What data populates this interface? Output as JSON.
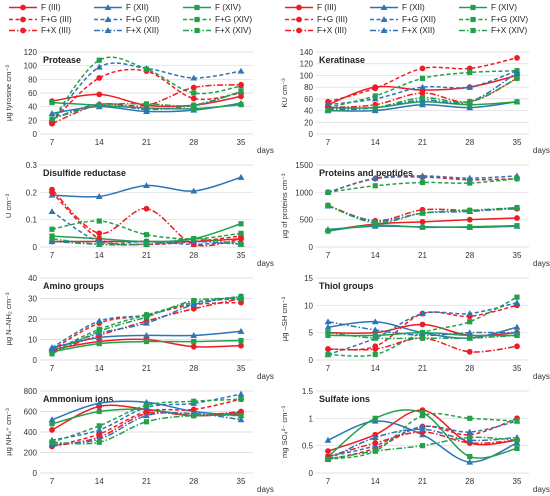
{
  "figure": {
    "x_ticks": [
      7,
      14,
      21,
      28,
      35
    ],
    "x_unit": "days"
  },
  "legend": [
    {
      "label": "F (III)",
      "key": "F_III"
    },
    {
      "label": "F (XII)",
      "key": "F_XII"
    },
    {
      "label": "F (XIV)",
      "key": "F_XIV"
    },
    {
      "label": "F+G (III)",
      "key": "FG_III"
    },
    {
      "label": "F+G (XII)",
      "key": "FG_XII"
    },
    {
      "label": "F+G (XIV)",
      "key": "FG_XIV"
    },
    {
      "label": "F+X (III)",
      "key": "FX_III"
    },
    {
      "label": "F+X (XII)",
      "key": "FX_XII"
    },
    {
      "label": "F+X (XIV)",
      "key": "FX_XIV"
    }
  ],
  "series_style": {
    "F_III": {
      "color": "#ee1c25",
      "marker": "circle",
      "dash": "solid"
    },
    "F_XII": {
      "color": "#2e75b6",
      "marker": "triangle",
      "dash": "solid"
    },
    "F_XIV": {
      "color": "#21a24a",
      "marker": "square",
      "dash": "solid"
    },
    "FG_III": {
      "color": "#ee1c25",
      "marker": "circle",
      "dash": "dashed"
    },
    "FG_XII": {
      "color": "#2e75b6",
      "marker": "triangle",
      "dash": "dashed"
    },
    "FG_XIV": {
      "color": "#21a24a",
      "marker": "square",
      "dash": "dashed"
    },
    "FX_III": {
      "color": "#ee1c25",
      "marker": "circle",
      "dash": "dashdot"
    },
    "FX_XII": {
      "color": "#2e75b6",
      "marker": "triangle",
      "dash": "dashdot"
    },
    "FX_XIV": {
      "color": "#21a24a",
      "marker": "square",
      "dash": "dashdot"
    }
  },
  "chart_data": [
    {
      "type": "line",
      "title": "Protease",
      "ylabel": "µg tyrosine cm⁻³",
      "x": [
        7,
        14,
        21,
        28,
        35
      ],
      "ylim": [
        0,
        120
      ],
      "yticks": [
        0,
        20,
        40,
        60,
        80,
        100,
        120
      ],
      "series": {
        "F_III": [
          48,
          58,
          42,
          42,
          55
        ],
        "F_XII": [
          30,
          40,
          33,
          35,
          45
        ],
        "F_XIV": [
          46,
          42,
          38,
          37,
          43
        ],
        "FG_III": [
          18,
          82,
          92,
          52,
          60
        ],
        "FG_XII": [
          18,
          98,
          96,
          82,
          92
        ],
        "FG_XIV": [
          20,
          108,
          95,
          60,
          70
        ],
        "FX_III": [
          15,
          43,
          42,
          68,
          72
        ],
        "FX_XII": [
          22,
          44,
          36,
          42,
          62
        ],
        "FX_XIV": [
          22,
          42,
          44,
          42,
          62
        ]
      }
    },
    {
      "type": "line",
      "title": "Keratinase",
      "ylabel": "KU cm⁻³",
      "x": [
        7,
        14,
        21,
        28,
        35
      ],
      "ylim": [
        0,
        140
      ],
      "yticks": [
        0,
        20,
        40,
        60,
        80,
        100,
        120,
        140
      ],
      "series": {
        "F_III": [
          50,
          80,
          75,
          80,
          100
        ],
        "F_XII": [
          40,
          40,
          50,
          45,
          55
        ],
        "F_XIV": [
          45,
          45,
          55,
          50,
          55
        ],
        "FG_III": [
          55,
          78,
          112,
          112,
          130
        ],
        "FG_XII": [
          50,
          60,
          80,
          80,
          108
        ],
        "FG_XIV": [
          45,
          65,
          95,
          105,
          108
        ],
        "FX_III": [
          45,
          50,
          70,
          55,
          95
        ],
        "FX_XII": [
          42,
          45,
          58,
          55,
          105
        ],
        "FX_XIV": [
          40,
          45,
          62,
          55,
          95
        ]
      }
    },
    {
      "type": "line",
      "title": "Disulfide reductase",
      "ylabel": "U cm⁻³",
      "x": [
        7,
        14,
        21,
        28,
        35
      ],
      "ylim": [
        0,
        0.3
      ],
      "yticks": [
        0,
        0.1,
        0.2,
        0.3
      ],
      "series": {
        "F_III": [
          0.02,
          0.02,
          0.02,
          0.02,
          0.03
        ],
        "F_XII": [
          0.19,
          0.185,
          0.225,
          0.205,
          0.255
        ],
        "F_XIV": [
          0.04,
          0.03,
          0.02,
          0.03,
          0.085
        ],
        "FG_III": [
          0.2,
          0.03,
          0.01,
          0.02,
          0.04
        ],
        "FG_XII": [
          0.13,
          0.02,
          0.02,
          0.01,
          0.02
        ],
        "FG_XIV": [
          0.065,
          0.095,
          0.045,
          0.03,
          0.05
        ],
        "FX_III": [
          0.21,
          0.05,
          0.14,
          0.01,
          0.03
        ],
        "FX_XII": [
          0.02,
          0.01,
          0.01,
          0.02,
          0.01
        ],
        "FX_XIV": [
          0.03,
          0.01,
          0.01,
          0.03,
          0.01
        ]
      }
    },
    {
      "type": "line",
      "title": "Proteins and peptides",
      "ylabel": "µg of proteins cm⁻³",
      "x": [
        7,
        14,
        21,
        28,
        35
      ],
      "ylim": [
        0,
        1500
      ],
      "yticks": [
        0,
        500,
        1000,
        1500
      ],
      "series": {
        "F_III": [
          300,
          420,
          460,
          500,
          530
        ],
        "F_XII": [
          320,
          380,
          370,
          360,
          380
        ],
        "F_XIV": [
          290,
          400,
          360,
          370,
          390
        ],
        "FG_III": [
          1000,
          1250,
          1280,
          1230,
          1250
        ],
        "FG_XII": [
          1000,
          1260,
          1300,
          1260,
          1300
        ],
        "FG_XIV": [
          1000,
          1120,
          1180,
          1170,
          1250
        ],
        "FX_III": [
          760,
          480,
          680,
          670,
          700
        ],
        "FX_XII": [
          750,
          470,
          620,
          650,
          720
        ],
        "FX_XIV": [
          760,
          440,
          620,
          670,
          720
        ]
      }
    },
    {
      "type": "line",
      "title": "Amino groups",
      "ylabel": "µg N–NH₂ cm⁻³",
      "x": [
        7,
        14,
        21,
        28,
        35
      ],
      "ylim": [
        0,
        40
      ],
      "yticks": [
        0,
        10,
        20,
        30,
        40
      ],
      "series": {
        "F_III": [
          5,
          9,
          10,
          6.5,
          7
        ],
        "F_XII": [
          6,
          11,
          12,
          12,
          14
        ],
        "F_XIV": [
          4,
          8,
          9,
          9,
          9.5
        ],
        "FG_III": [
          5,
          18,
          22,
          27,
          28
        ],
        "FG_XII": [
          6,
          19,
          22,
          28,
          30
        ],
        "FG_XIV": [
          4,
          15,
          22,
          28,
          31
        ],
        "FX_III": [
          4,
          12,
          19,
          25,
          30
        ],
        "FX_XII": [
          5,
          13,
          18,
          27,
          31
        ],
        "FX_XIV": [
          3,
          14,
          21,
          29,
          30
        ]
      }
    },
    {
      "type": "line",
      "title": "Thiol groups",
      "ylabel": "µg –SH cm⁻³",
      "x": [
        7,
        14,
        21,
        28,
        35
      ],
      "ylim": [
        0,
        15
      ],
      "yticks": [
        0,
        5,
        10,
        15
      ],
      "series": {
        "F_III": [
          5,
          5,
          6.5,
          4.5,
          5
        ],
        "F_XII": [
          6,
          7,
          5,
          4,
          6
        ],
        "F_XIV": [
          4.5,
          4.5,
          5,
          4.5,
          4.5
        ],
        "FG_III": [
          2,
          2.5,
          8.5,
          8,
          10
        ],
        "FG_XII": [
          1,
          4,
          8.5,
          8.5,
          10.5
        ],
        "FG_XIV": [
          1,
          1,
          5,
          7,
          11.5
        ],
        "FX_III": [
          2,
          2,
          4,
          1.5,
          2.5
        ],
        "FX_XII": [
          7,
          5.5,
          4.5,
          5,
          5
        ],
        "FX_XIV": [
          5,
          4,
          4,
          4,
          4.5
        ]
      }
    },
    {
      "type": "line",
      "title": "Ammonium ions",
      "ylabel": "µg NH₄⁺ cm⁻³",
      "x": [
        7,
        14,
        21,
        28,
        35
      ],
      "ylim": [
        0,
        800
      ],
      "yticks": [
        0,
        200,
        400,
        600,
        800
      ],
      "series": {
        "F_III": [
          420,
          650,
          620,
          560,
          580
        ],
        "F_XII": [
          520,
          680,
          690,
          600,
          560
        ],
        "F_XIV": [
          480,
          600,
          620,
          560,
          590
        ],
        "FG_III": [
          260,
          380,
          600,
          620,
          720
        ],
        "FG_XII": [
          320,
          420,
          640,
          680,
          770
        ],
        "FG_XIV": [
          300,
          460,
          660,
          700,
          720
        ],
        "FX_III": [
          260,
          350,
          580,
          560,
          600
        ],
        "FX_XII": [
          280,
          330,
          560,
          580,
          520
        ],
        "FX_XIV": [
          300,
          300,
          500,
          560,
          560
        ]
      }
    },
    {
      "type": "line",
      "title": "Sulfate ions",
      "ylabel": "mg SO₄²⁻ cm⁻³",
      "x": [
        7,
        14,
        21,
        28,
        35
      ],
      "ylim": [
        0,
        1.5
      ],
      "yticks": [
        0,
        0.5,
        1,
        1.5
      ],
      "series": {
        "F_III": [
          0.4,
          0.7,
          1.15,
          0.55,
          0.6
        ],
        "F_XII": [
          0.6,
          0.95,
          0.7,
          0.2,
          0.55
        ],
        "F_XIV": [
          0.3,
          1.0,
          1.1,
          0.3,
          0.45
        ],
        "FG_III": [
          0.25,
          0.45,
          0.85,
          0.7,
          1.0
        ],
        "FG_XII": [
          0.3,
          0.5,
          0.85,
          0.75,
          0.95
        ],
        "FG_XIV": [
          0.25,
          0.4,
          1.05,
          1.0,
          0.95
        ],
        "FX_III": [
          0.3,
          0.55,
          0.75,
          0.55,
          0.6
        ],
        "FX_XII": [
          0.25,
          0.65,
          0.8,
          0.6,
          0.65
        ],
        "FX_XIV": [
          0.25,
          0.4,
          0.5,
          0.65,
          0.6
        ]
      }
    }
  ]
}
